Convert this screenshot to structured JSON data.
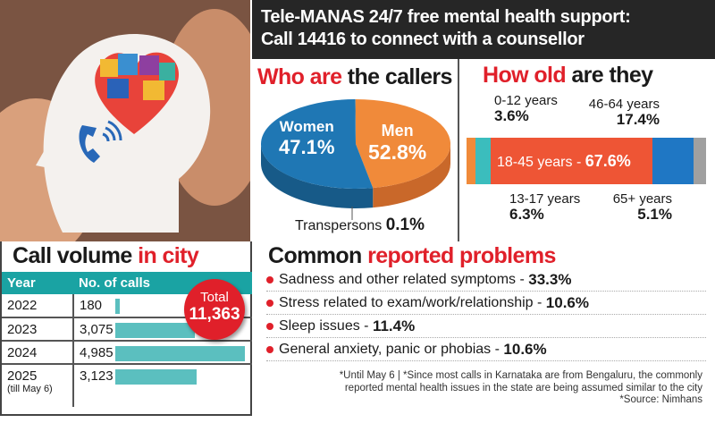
{
  "header": {
    "line1": "Tele-MANAS 24/7 free mental health support:",
    "line2": "Call 14416 to connect with a counsellor"
  },
  "colors": {
    "accent_red": "#e0202a",
    "teal": "#1aa3a3",
    "orange": "#f08a3a",
    "blue": "#1f77b4",
    "age_red": "#ee5535",
    "gray": "#a0a0a0"
  },
  "chart_data": [
    {
      "type": "pie",
      "title_red": "Who are",
      "title_black": "the callers",
      "slices": [
        {
          "label": "Women",
          "value": 47.1,
          "display": "47.1%",
          "color": "#f08a3a"
        },
        {
          "label": "Men",
          "value": 52.8,
          "display": "52.8%",
          "color": "#1f77b4"
        },
        {
          "label": "Transpersons",
          "value": 0.1,
          "display": "0.1%",
          "color": "#888888"
        }
      ]
    },
    {
      "type": "bar",
      "orientation": "stacked-horizontal",
      "title_red": "How old",
      "title_black": "are they",
      "segments": [
        {
          "label": "0-12 years",
          "value": 3.6,
          "display": "3.6%",
          "color": "#f08a3a"
        },
        {
          "label": "13-17 years",
          "value": 6.3,
          "display": "6.3%",
          "color": "#3bbdbd"
        },
        {
          "label": "18-45 years",
          "value": 67.6,
          "display": "67.6%",
          "color": "#ee5535"
        },
        {
          "label": "46-64 years",
          "value": 17.4,
          "display": "17.4%",
          "color": "#1f77c4"
        },
        {
          "label": "65+ years",
          "value": 5.1,
          "display": "5.1%",
          "color": "#a0a0a0"
        }
      ]
    },
    {
      "type": "table",
      "title_black": "Call volume",
      "title_red": "in city",
      "columns": [
        "Year",
        "No. of calls"
      ],
      "rows": [
        {
          "year": "2022",
          "note": "",
          "calls": 180,
          "display": "180"
        },
        {
          "year": "2023",
          "note": "",
          "calls": 3075,
          "display": "3,075"
        },
        {
          "year": "2024",
          "note": "",
          "calls": 4985,
          "display": "4,985"
        },
        {
          "year": "2025",
          "note": "(till May 6)",
          "calls": 3123,
          "display": "3,123"
        }
      ],
      "total_label": "Total",
      "total_value": "11,363"
    }
  ],
  "problems": {
    "title_black": "Common",
    "title_red": "reported problems",
    "items": [
      {
        "text": "Sadness and other related symptoms - ",
        "value": "33.3%"
      },
      {
        "text": "Stress related to exam/work/relationship - ",
        "value": "10.6%"
      },
      {
        "text": "Sleep issues - ",
        "value": "11.4%"
      },
      {
        "text": "General anxiety, panic or phobias - ",
        "value": "10.6%"
      }
    ],
    "note1": "*Until May 6  |  *Since most calls in Karnataka are from Bengaluru, the commonly",
    "note2": "reported mental health issues in the state are being assumed similar to the city",
    "source": "*Source: Nimhans"
  }
}
